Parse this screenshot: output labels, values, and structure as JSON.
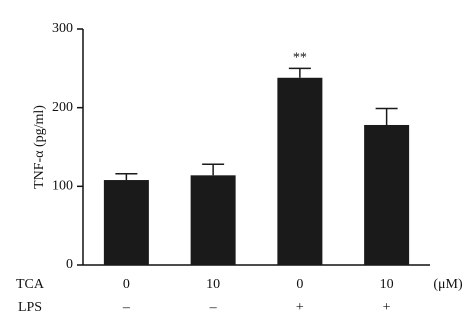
{
  "chart_data": {
    "type": "bar",
    "y_label": "TNF-α (pg/ml)",
    "categories": [
      "0",
      "10",
      "0",
      "10"
    ],
    "category_name": "TCA",
    "category_unit": "(μM)",
    "second_row": {
      "name": "LPS",
      "labels": [
        "–",
        "–",
        "+",
        "+"
      ]
    },
    "values": [
      108,
      114,
      238,
      178
    ],
    "errors": [
      8,
      14,
      12,
      21
    ],
    "annotations": [
      null,
      null,
      "**",
      null
    ],
    "color": "#1a1a1a",
    "ylim": [
      0,
      300
    ],
    "yticks": [
      0,
      100,
      200,
      300
    ]
  }
}
